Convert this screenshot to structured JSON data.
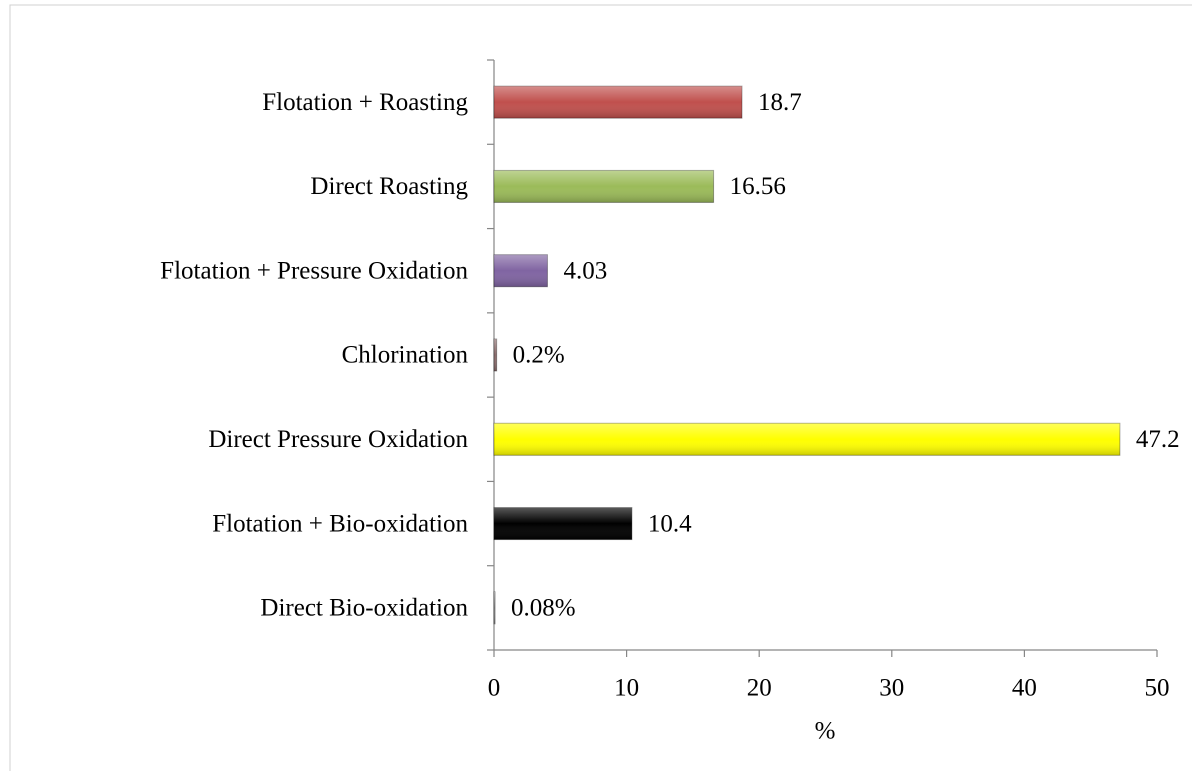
{
  "chart_data": {
    "type": "hbar",
    "categories": [
      "Flotation + Roasting",
      "Direct Roasting",
      "Flotation + Pressure Oxidation",
      "Chlorination",
      "Direct Pressure Oxidation",
      "Flotation + Bio-oxidation",
      "Direct Bio-oxidation"
    ],
    "values": [
      18.7,
      16.56,
      4.03,
      0.2,
      47.2,
      10.4,
      0.08
    ],
    "value_labels": [
      "18.7",
      "16.56",
      "4.03",
      "0.2%",
      "47.2",
      "10.4",
      "0.08%"
    ],
    "colors": [
      "#c0504d",
      "#9bbb59",
      "#8064a2",
      "#8c6d6d",
      "#ffff00",
      "#000000",
      "#a6a6a6"
    ],
    "xlabel": "%",
    "xlim": [
      0,
      50
    ],
    "xticks": [
      0,
      10,
      20,
      30,
      40,
      50
    ],
    "grid": false
  }
}
